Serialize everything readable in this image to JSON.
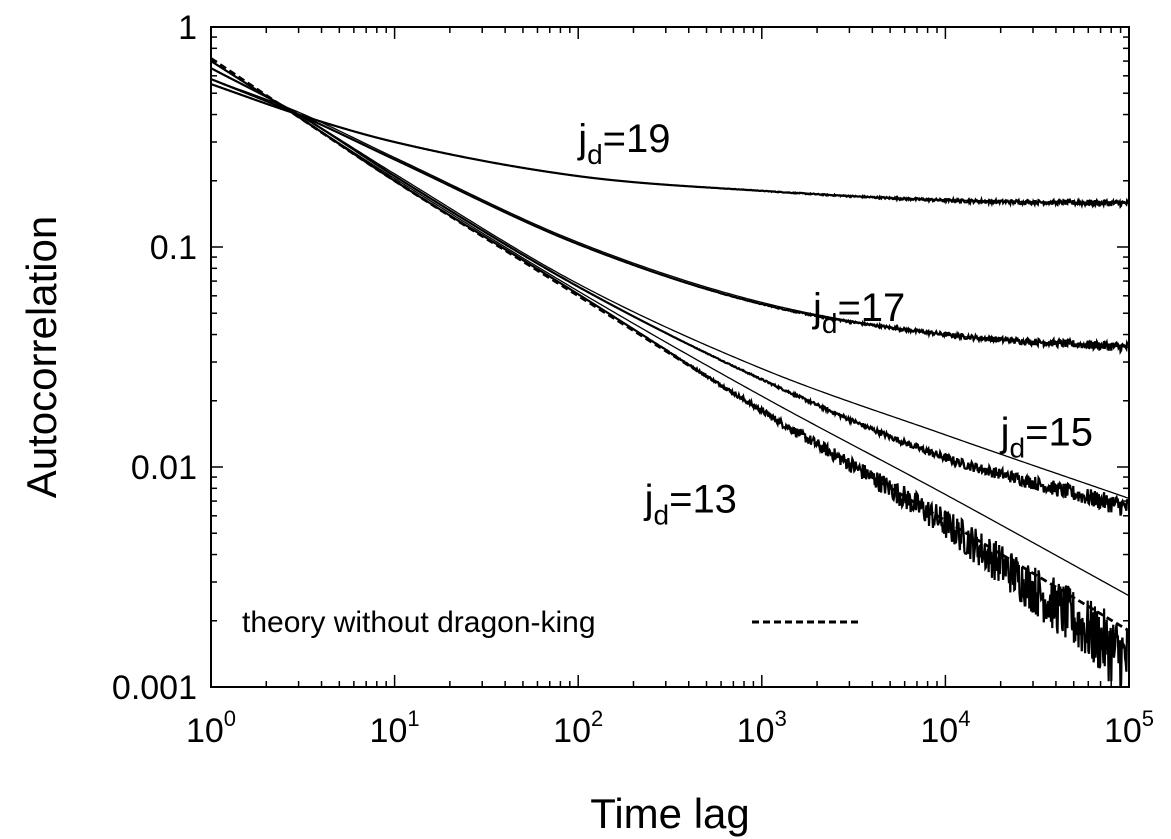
{
  "chart_data": {
    "type": "line",
    "xscale": "log",
    "yscale": "log",
    "xlim": [
      1,
      100000
    ],
    "ylim": [
      0.001,
      1
    ],
    "xlabel": "Time lag",
    "ylabel": "Autocorrelation",
    "x_ticks": [
      {
        "value": 1,
        "base": "10",
        "exp": "0"
      },
      {
        "value": 10,
        "base": "10",
        "exp": "1"
      },
      {
        "value": 100,
        "base": "10",
        "exp": "2"
      },
      {
        "value": 1000,
        "base": "10",
        "exp": "3"
      },
      {
        "value": 10000,
        "base": "10",
        "exp": "4"
      },
      {
        "value": 100000,
        "base": "10",
        "exp": "5"
      }
    ],
    "y_ticks": [
      {
        "value": 1,
        "label": "1"
      },
      {
        "value": 0.1,
        "label": "0.1"
      },
      {
        "value": 0.01,
        "label": "0.01"
      },
      {
        "value": 0.001,
        "label": "0.001"
      }
    ],
    "grid": false,
    "legend": {
      "position": "bottom-left",
      "entries": [
        {
          "label": "theory without dragon-king",
          "style": "dashed",
          "color": "#000000"
        }
      ]
    },
    "series": [
      {
        "id": "jd19",
        "x": [
          1,
          3,
          10,
          100,
          1000,
          10000,
          100000
        ],
        "y": [
          0.55,
          0.4,
          0.3,
          0.21,
          0.18,
          0.163,
          0.158
        ]
      },
      {
        "id": "jd17",
        "x": [
          1,
          3,
          10,
          100,
          1000,
          10000,
          100000
        ],
        "y": [
          0.58,
          0.4,
          0.25,
          0.103,
          0.055,
          0.04,
          0.035
        ]
      },
      {
        "id": "jd15",
        "x": [
          1,
          3,
          10,
          100,
          1000,
          10000,
          30000,
          100000
        ],
        "y": [
          0.65,
          0.4,
          0.21,
          0.066,
          0.025,
          0.011,
          0.0085,
          0.0065
        ]
      },
      {
        "id": "jd13",
        "x": [
          1,
          3,
          10,
          100,
          1000,
          10000,
          30000,
          100000
        ],
        "y": [
          0.7,
          0.39,
          0.2,
          0.061,
          0.018,
          0.0055,
          0.0028,
          0.0013
        ]
      }
    ],
    "theory_curves": [
      {
        "for": "jd19",
        "x": [
          1,
          3,
          10,
          100,
          1000,
          10000,
          100000
        ],
        "y": [
          0.55,
          0.4,
          0.3,
          0.21,
          0.18,
          0.164,
          0.158
        ]
      },
      {
        "for": "jd17",
        "x": [
          1,
          3,
          10,
          100,
          1000,
          10000,
          100000
        ],
        "y": [
          0.58,
          0.41,
          0.255,
          0.105,
          0.056,
          0.04,
          0.035
        ]
      },
      {
        "for": "jd15",
        "x": [
          1,
          3,
          10,
          100,
          1000,
          10000,
          100000
        ],
        "y": [
          0.65,
          0.4,
          0.215,
          0.068,
          0.028,
          0.014,
          0.0072
        ]
      },
      {
        "for": "jd13",
        "x": [
          1,
          3,
          10,
          100,
          1000,
          10000,
          100000
        ],
        "y": [
          0.7,
          0.39,
          0.205,
          0.063,
          0.021,
          0.0075,
          0.0026
        ]
      }
    ],
    "dashed_curve": {
      "x": [
        1,
        3,
        10,
        100,
        1000,
        10000,
        100000
      ],
      "y": [
        0.72,
        0.39,
        0.2,
        0.06,
        0.018,
        0.0057,
        0.0018
      ]
    },
    "annotations": [
      {
        "base": "j",
        "sub": "d",
        "rest": "=19",
        "x": 100,
        "y": 0.27
      },
      {
        "base": "j",
        "sub": "d",
        "rest": "=17",
        "x": 1900,
        "y": 0.046
      },
      {
        "base": "j",
        "sub": "d",
        "rest": "=15",
        "x": 20000,
        "y": 0.0125
      },
      {
        "base": "j",
        "sub": "d",
        "rest": "=13",
        "x": 230,
        "y": 0.0062
      }
    ]
  }
}
